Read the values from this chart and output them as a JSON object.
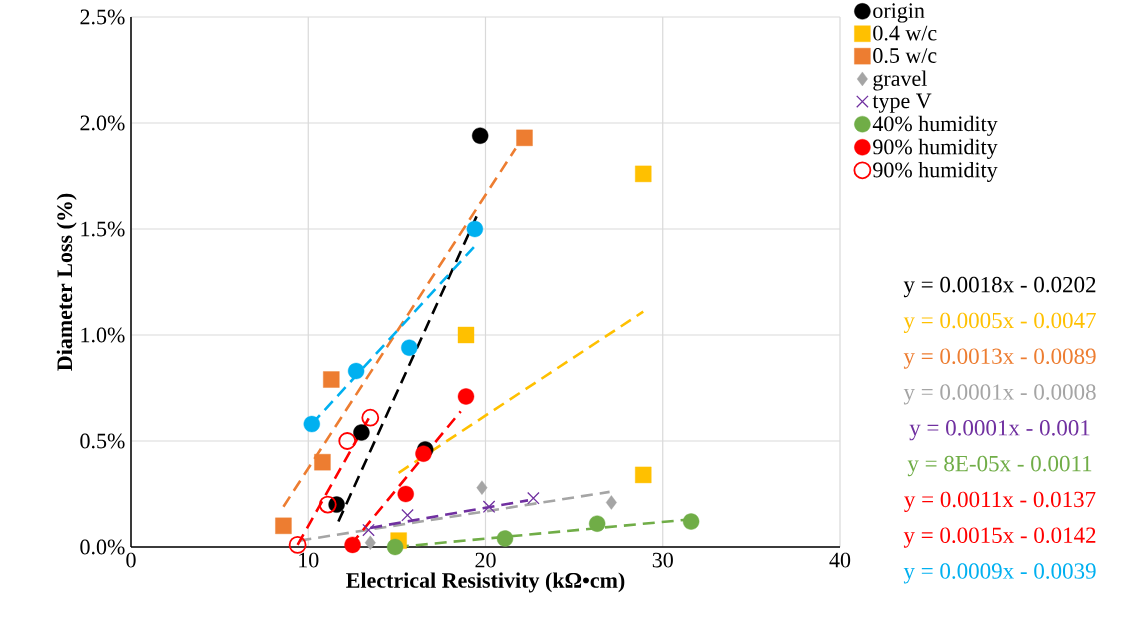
{
  "chart_data": {
    "type": "scatter",
    "xlabel": "Electrical Resistivity (kΩ•cm)",
    "ylabel": "Diameter Loss (%)",
    "xlim": [
      0,
      40
    ],
    "xticks": [
      0,
      10,
      20,
      30,
      40
    ],
    "ylim": [
      0,
      2.5
    ],
    "yticks": [
      {
        "value": 0,
        "label": "0.0%"
      },
      {
        "value": 0.5,
        "label": "0.5%"
      },
      {
        "value": 1.0,
        "label": "1.0%"
      },
      {
        "value": 1.5,
        "label": "1.5%"
      },
      {
        "value": 2.0,
        "label": "2.0%"
      },
      {
        "value": 2.5,
        "label": "2.5%"
      }
    ],
    "grid": true,
    "legend": "right",
    "annotations": [
      "y = 0.0018x - 0.0202",
      "y = 0.0005x - 0.0047",
      "y = 0.0013x - 0.0089",
      "y = 0.0001x - 0.0008",
      "y = 0.0001x - 0.001",
      "y = 8E-05x - 0.0011",
      "y = 0.0011x - 0.0137",
      "y = 0.0015x - 0.0142",
      "y = 0.0009x - 0.0039"
    ],
    "series": [
      {
        "name": "origin",
        "color": "#000000",
        "marker": "circle",
        "x": [
          19.7,
          13.0,
          16.6,
          11.6
        ],
        "values": [
          1.94,
          0.54,
          0.46,
          0.2
        ]
      },
      {
        "name": "0.4 w/c",
        "color": "#ffc000",
        "marker": "square",
        "x": [
          28.9,
          18.9,
          28.9,
          15.1
        ],
        "values": [
          1.76,
          1.0,
          0.34,
          0.03
        ]
      },
      {
        "name": "0.5 w/c",
        "color": "#ed7d31",
        "marker": "square",
        "x": [
          8.6,
          10.8,
          11.3,
          22.2
        ],
        "values": [
          0.1,
          0.4,
          0.79,
          1.93
        ]
      },
      {
        "name": "gravel",
        "color": "#a5a5a5",
        "marker": "diamond",
        "x": [
          13.5,
          19.8,
          27.1
        ],
        "values": [
          0.02,
          0.28,
          0.21
        ]
      },
      {
        "name": "type V",
        "color": "#7030a0",
        "marker": "cross",
        "x": [
          13.4,
          15.6,
          20.2,
          22.7
        ],
        "values": [
          0.08,
          0.15,
          0.19,
          0.23
        ]
      },
      {
        "name": "40% humidity",
        "color": "#70ad47",
        "marker": "circle",
        "x": [
          14.9,
          21.1,
          26.3,
          31.6
        ],
        "values": [
          0.0,
          0.04,
          0.11,
          0.12
        ]
      },
      {
        "name": "90% humidity",
        "color": "#ff0000",
        "marker": "circle",
        "x": [
          12.5,
          15.5,
          16.5,
          18.9
        ],
        "values": [
          0.01,
          0.25,
          0.44,
          0.71
        ]
      },
      {
        "name": "90% humidity",
        "color": "#ff0000",
        "marker": "circle-open",
        "x": [
          9.4,
          11.1,
          12.2,
          13.5
        ],
        "values": [
          0.01,
          0.2,
          0.5,
          0.61
        ]
      },
      {
        "color": "#00b0f0",
        "marker": "circle",
        "x": [
          10.2,
          12.7,
          15.7,
          19.4
        ],
        "values": [
          0.58,
          0.83,
          0.94,
          1.5
        ]
      },
      {
        "type": "line",
        "color": "#000000",
        "line_style": "dashed",
        "x": [
          11.7,
          19.5
        ],
        "values": [
          0.12,
          1.56
        ]
      },
      {
        "type": "line",
        "color": "#ffc000",
        "line_style": "dashed",
        "x": [
          15.1,
          28.9
        ],
        "values": [
          0.35,
          1.11
        ]
      },
      {
        "type": "line",
        "color": "#ed7d31",
        "line_style": "dashed",
        "x": [
          8.6,
          21.7
        ],
        "values": [
          0.19,
          1.88
        ]
      },
      {
        "type": "line",
        "color": "#a5a5a5",
        "line_style": "dashed",
        "x": [
          9.5,
          27.0
        ],
        "values": [
          0.03,
          0.26
        ]
      },
      {
        "type": "line",
        "color": "#7030a0",
        "line_style": "dashed",
        "x": [
          13.5,
          22.4
        ],
        "values": [
          0.09,
          0.22
        ]
      },
      {
        "type": "line",
        "color": "#70ad47",
        "line_style": "dashed",
        "x": [
          15.0,
          31.5
        ],
        "values": [
          0.0,
          0.13
        ]
      },
      {
        "type": "line",
        "color": "#ff0000",
        "line_style": "dashed",
        "x": [
          12.4,
          18.6
        ],
        "values": [
          0.01,
          0.64
        ]
      },
      {
        "type": "line",
        "color": "#ff0000",
        "line_style": "dashed",
        "x": [
          9.4,
          13.5
        ],
        "values": [
          0.01,
          0.62
        ]
      },
      {
        "type": "line",
        "color": "#00b0f0",
        "line_style": "dashed",
        "x": [
          10.2,
          19.4
        ],
        "values": [
          0.58,
          1.42
        ]
      }
    ]
  }
}
